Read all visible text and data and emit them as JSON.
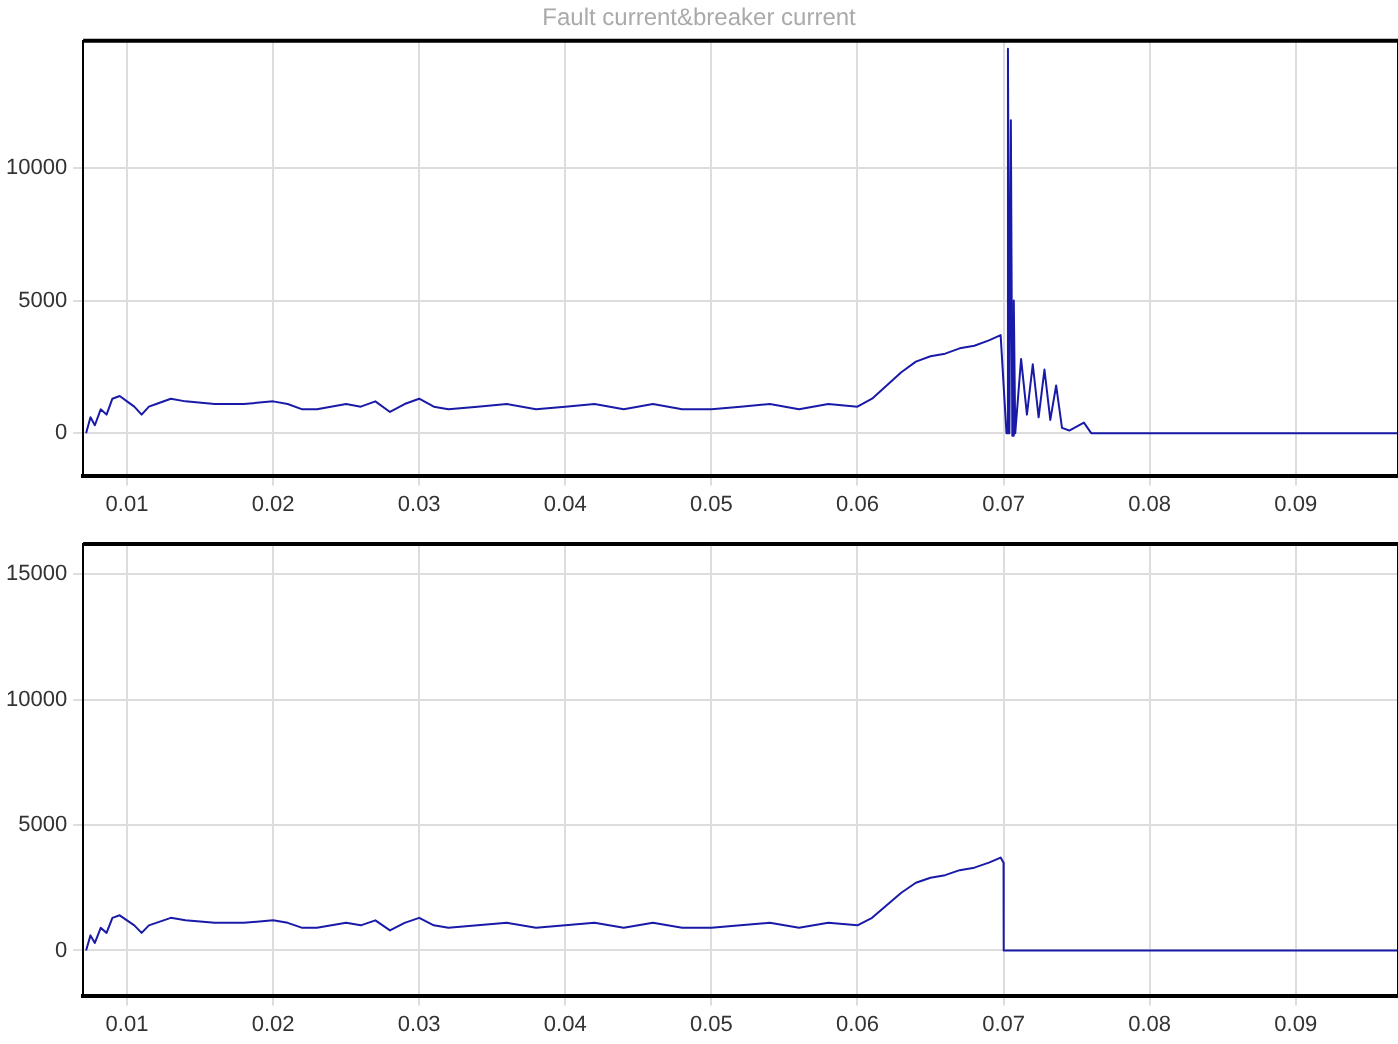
{
  "chart_data": [
    {
      "type": "line",
      "title": "Fault current&breaker current",
      "x": [
        0.0072,
        0.0075,
        0.0078,
        0.0082,
        0.0086,
        0.009,
        0.0095,
        0.01,
        0.0105,
        0.011,
        0.0115,
        0.012,
        0.013,
        0.014,
        0.016,
        0.018,
        0.02,
        0.021,
        0.022,
        0.023,
        0.025,
        0.026,
        0.027,
        0.028,
        0.029,
        0.03,
        0.031,
        0.032,
        0.034,
        0.036,
        0.038,
        0.04,
        0.042,
        0.044,
        0.046,
        0.048,
        0.05,
        0.052,
        0.054,
        0.056,
        0.058,
        0.06,
        0.061,
        0.062,
        0.063,
        0.064,
        0.065,
        0.066,
        0.067,
        0.068,
        0.069,
        0.0698,
        0.0702,
        0.0703,
        0.0704,
        0.0705,
        0.0706,
        0.0707,
        0.0708,
        0.0712,
        0.0716,
        0.072,
        0.0724,
        0.0728,
        0.0732,
        0.0736,
        0.074,
        0.0745,
        0.0755,
        0.076,
        0.08,
        0.097
      ],
      "series": [
        {
          "color": "#1a1aa8",
          "values": [
            0,
            600,
            300,
            900,
            700,
            1300,
            1400,
            1200,
            1000,
            700,
            1000,
            1100,
            1300,
            1200,
            1100,
            1100,
            1200,
            1100,
            900,
            900,
            1100,
            1000,
            1200,
            800,
            1100,
            1300,
            1000,
            900,
            1000,
            1100,
            900,
            1000,
            1100,
            900,
            1100,
            900,
            900,
            1000,
            1100,
            900,
            1100,
            1000,
            1300,
            1800,
            2300,
            2700,
            2900,
            3000,
            3200,
            3300,
            3500,
            3700,
            0,
            14500,
            0,
            11800,
            -100,
            5000,
            0,
            2800,
            700,
            2600,
            600,
            2400,
            500,
            1800,
            200,
            100,
            400,
            0,
            0,
            0
          ]
        }
      ],
      "xlim": [
        0.007,
        0.097
      ],
      "xticks": [
        0.01,
        0.02,
        0.03,
        0.04,
        0.05,
        0.06,
        0.07,
        0.08,
        0.09
      ],
      "ylim": [
        -1600,
        14800
      ],
      "yticks": [
        0,
        5000,
        10000
      ],
      "grid": true,
      "marker": "none",
      "line_style": "solid",
      "legend": false
    },
    {
      "type": "line",
      "x": [
        0.0072,
        0.0075,
        0.0078,
        0.0082,
        0.0086,
        0.009,
        0.0095,
        0.01,
        0.0105,
        0.011,
        0.0115,
        0.012,
        0.013,
        0.014,
        0.016,
        0.018,
        0.02,
        0.021,
        0.022,
        0.023,
        0.025,
        0.026,
        0.027,
        0.028,
        0.029,
        0.03,
        0.031,
        0.032,
        0.034,
        0.036,
        0.038,
        0.04,
        0.042,
        0.044,
        0.046,
        0.048,
        0.05,
        0.052,
        0.054,
        0.056,
        0.058,
        0.06,
        0.061,
        0.062,
        0.063,
        0.064,
        0.065,
        0.066,
        0.067,
        0.068,
        0.069,
        0.0698,
        0.07,
        0.07001,
        0.08,
        0.097
      ],
      "series": [
        {
          "color": "#1a1aa8",
          "values": [
            0,
            600,
            300,
            900,
            700,
            1300,
            1400,
            1200,
            1000,
            700,
            1000,
            1100,
            1300,
            1200,
            1100,
            1100,
            1200,
            1100,
            900,
            900,
            1100,
            1000,
            1200,
            800,
            1100,
            1300,
            1000,
            900,
            1000,
            1100,
            900,
            1000,
            1100,
            900,
            1100,
            900,
            900,
            1000,
            1100,
            900,
            1100,
            1000,
            1300,
            1800,
            2300,
            2700,
            2900,
            3000,
            3200,
            3300,
            3500,
            3700,
            3500,
            0,
            0,
            0
          ]
        }
      ],
      "xlim": [
        0.007,
        0.097
      ],
      "xticks": [
        0.01,
        0.02,
        0.03,
        0.04,
        0.05,
        0.06,
        0.07,
        0.08,
        0.09
      ],
      "ylim": [
        -1800,
        16200
      ],
      "yticks": [
        0,
        5000,
        10000,
        15000
      ],
      "grid": true,
      "marker": "none",
      "line_style": "solid",
      "legend": false
    }
  ]
}
